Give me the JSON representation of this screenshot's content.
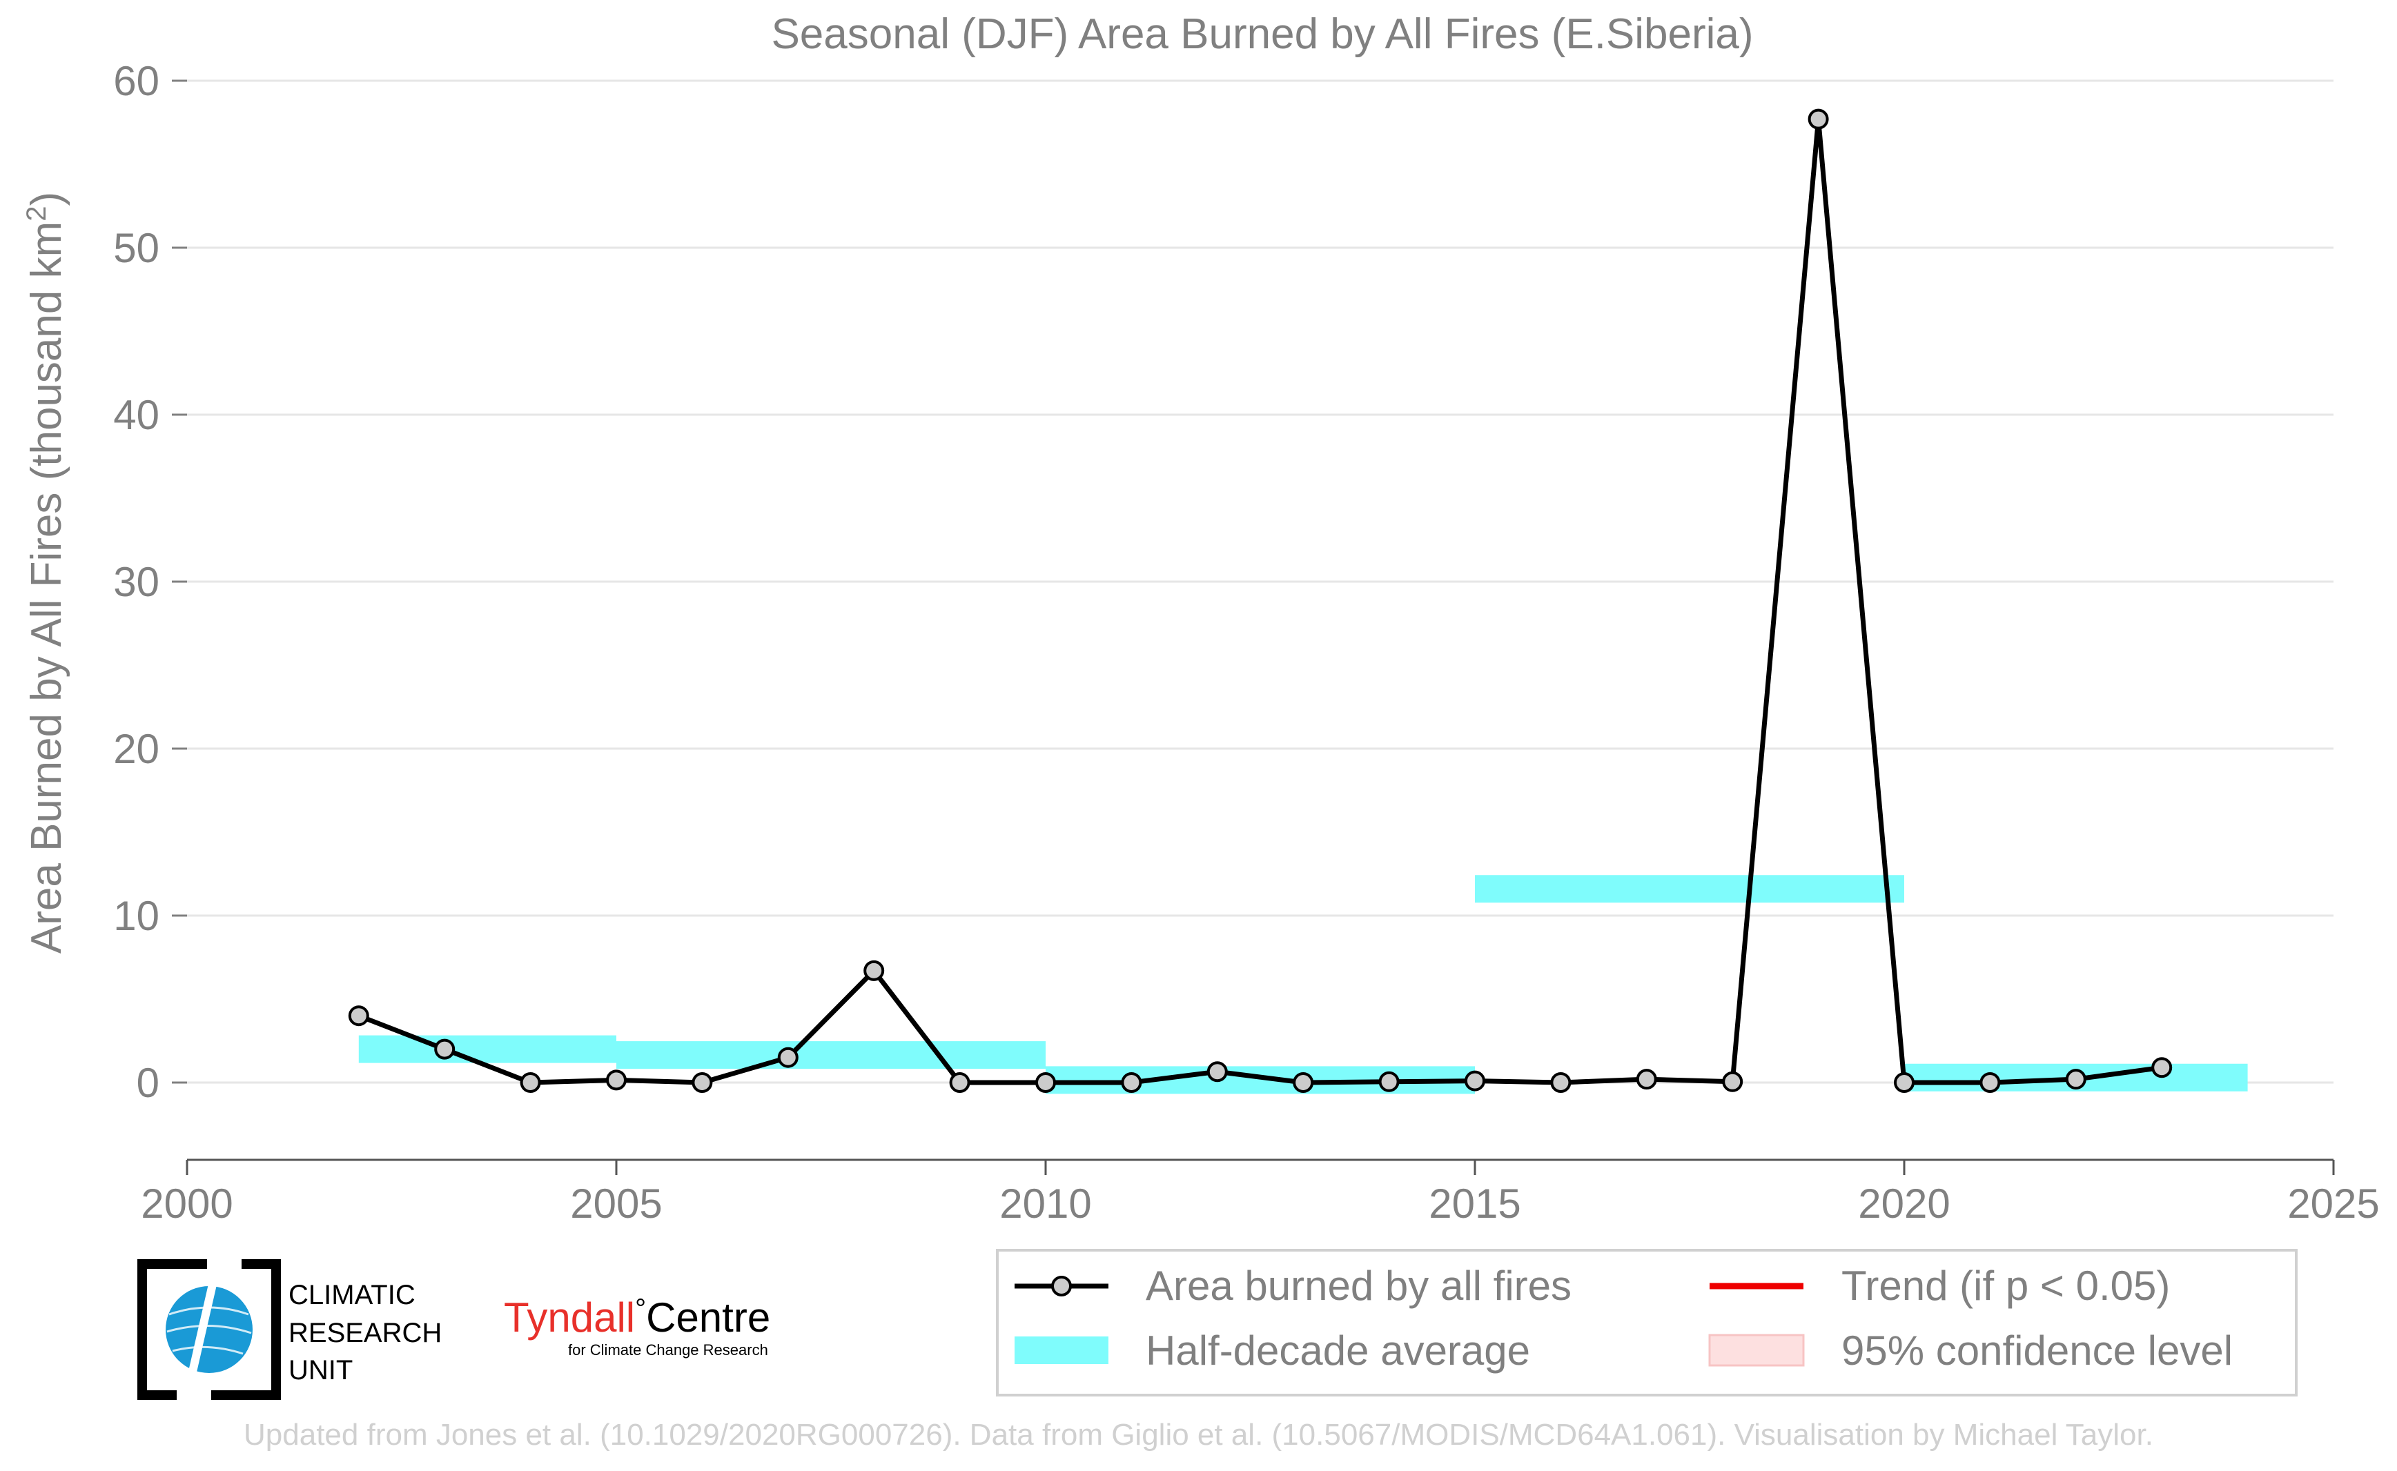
{
  "chart_data": {
    "type": "line",
    "title": "Seasonal (DJF) Area Burned by All Fires (E.Siberia)",
    "xlabel": "",
    "ylabel": "Area Burned by All Fires (thousand km",
    "ylabel_sup": "2",
    "ylabel_tail": ")",
    "xlim": [
      2000,
      2025
    ],
    "ylim": [
      -4.5,
      60
    ],
    "xticks": [
      2000,
      2005,
      2010,
      2015,
      2020,
      2025
    ],
    "yticks": [
      0,
      10,
      20,
      30,
      40,
      50,
      60
    ],
    "grid": "horizontal",
    "series": [
      {
        "name": "Area burned by all fires",
        "color": "#000000",
        "marker_fill": "#cccccc",
        "x": [
          2002,
          2003,
          2004,
          2005,
          2006,
          2007,
          2008,
          2009,
          2010,
          2011,
          2012,
          2013,
          2014,
          2015,
          2016,
          2017,
          2018,
          2019,
          2020,
          2021,
          2022,
          2023
        ],
        "y": [
          4.0,
          2.0,
          0.0,
          0.15,
          0.0,
          1.5,
          6.7,
          0.0,
          0.0,
          0.0,
          0.65,
          0.0,
          0.05,
          0.1,
          0.0,
          0.2,
          0.05,
          57.7,
          0.0,
          0.0,
          0.2,
          0.9
        ]
      }
    ],
    "half_decade_average": {
      "name": "Half-decade average",
      "color": "#7ffcfc",
      "segments": [
        {
          "x0": 2002,
          "x1": 2005,
          "y": 2.0
        },
        {
          "x0": 2005,
          "x1": 2010,
          "y": 1.65
        },
        {
          "x0": 2010,
          "x1": 2015,
          "y": 0.15
        },
        {
          "x0": 2015,
          "x1": 2020,
          "y": 11.6
        },
        {
          "x0": 2020,
          "x1": 2024,
          "y": 0.3
        }
      ]
    },
    "legend": {
      "placement": "bottom-right",
      "entries": [
        {
          "label": "Area burned by all fires",
          "kind": "line-marker",
          "color": "#000000"
        },
        {
          "label": "Trend (if p < 0.05)",
          "kind": "line",
          "color": "#ee0000"
        },
        {
          "label": "Half-decade average",
          "kind": "band",
          "color": "#7ffcfc"
        },
        {
          "label": "95% confidence level",
          "kind": "band",
          "color": "#fde0e0"
        }
      ]
    }
  },
  "logos": {
    "cru_lines": [
      "CLIMATIC",
      "RESEARCH",
      "UNIT"
    ],
    "tyndall_name": "Tyndall",
    "tyndall_degree": "°",
    "tyndall_centre": "Centre",
    "tyndall_sub": "for Climate Change Research",
    "tyndall_color": "#e8302a",
    "cru_globe_color": "#1a9ad6"
  },
  "footer": "Updated from Jones et al. (10.1029/2020RG000726). Data from Giglio et al. (10.5067/MODIS/MCD64A1.061). Visualisation by Michael Taylor."
}
